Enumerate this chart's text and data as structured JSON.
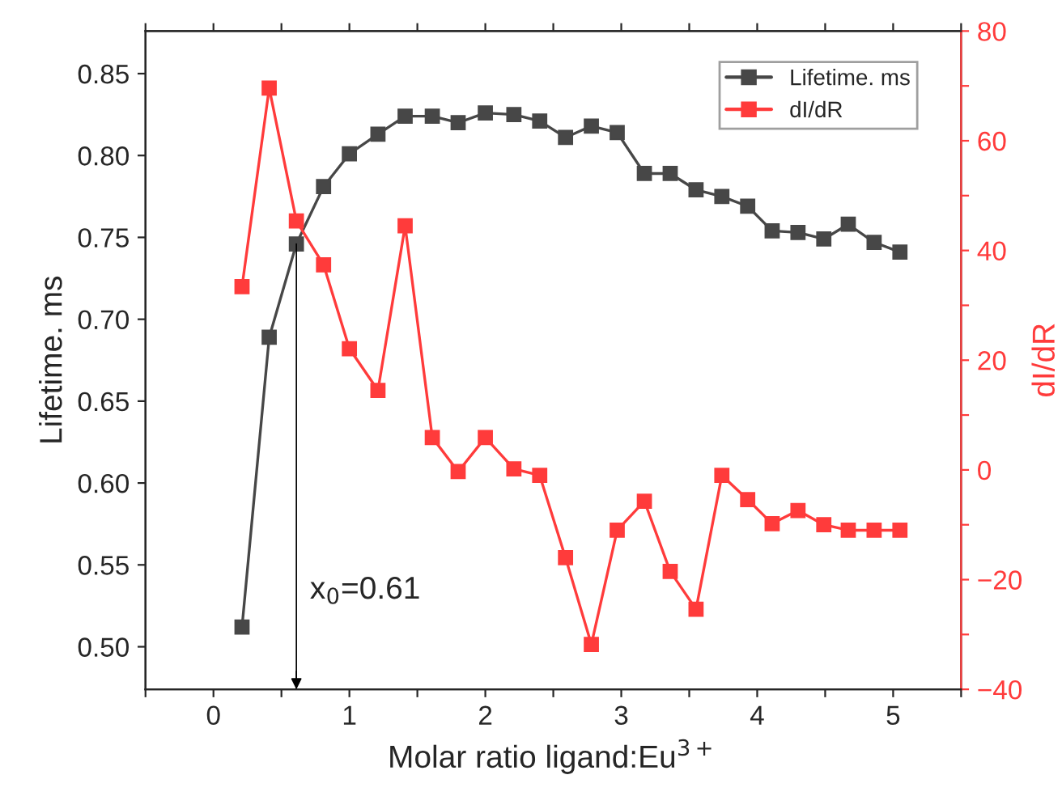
{
  "chart_data": {
    "type": "line",
    "xlabel": "Molar ratio ligand:Eu$^{3+}$",
    "ylabel": "Lifetime. ms",
    "y2label": "dI/dR",
    "x": [
      0.21,
      0.41,
      0.61,
      0.81,
      1.0,
      1.21,
      1.41,
      1.61,
      1.8,
      2.0,
      2.21,
      2.4,
      2.59,
      2.78,
      2.97,
      3.17,
      3.36,
      3.55,
      3.74,
      3.93,
      4.11,
      4.3,
      4.49,
      4.67,
      4.86,
      5.05
    ],
    "series": [
      {
        "name": "Lifetime. ms",
        "color": "#474747",
        "values": [
          0.512,
          0.689,
          0.746,
          0.781,
          0.801,
          0.813,
          0.824,
          0.824,
          0.82,
          0.826,
          0.825,
          0.821,
          0.811,
          0.818,
          0.814,
          0.789,
          0.789,
          0.779,
          0.775,
          0.769,
          0.754,
          0.753,
          0.749,
          0.758,
          0.747,
          0.741
        ]
      },
      {
        "name": "dI/dR",
        "color": "#ff3b3b",
        "axis": "y2",
        "values": [
          33.4,
          69.6,
          45.4,
          37.4,
          22.1,
          14.5,
          44.5,
          5.9,
          -0.3,
          5.9,
          0.2,
          -1.0,
          -16.0,
          -31.8,
          -11.0,
          -5.7,
          -18.5,
          -25.4,
          -1.0,
          -5.4,
          -9.8,
          -7.4,
          -10.0,
          -11.0,
          -11.0,
          -11.0
        ]
      }
    ],
    "xlim": [
      -0.5,
      5.5
    ],
    "xticks": [
      {
        "value": -0.5,
        "label": null
      },
      0,
      {
        "value": 0.5,
        "label": null
      },
      1,
      {
        "value": 1.5,
        "label": null
      },
      2,
      {
        "value": 2.5,
        "label": null
      },
      3,
      {
        "value": 3.5,
        "label": null
      },
      4,
      {
        "value": 4.5,
        "label": null
      },
      5,
      {
        "value": 5.5,
        "label": null
      }
    ],
    "ylim": [
      0.474,
      0.876
    ],
    "yticks": [
      {
        "value": 0.5,
        "label": "0.50"
      },
      {
        "value": 0.55,
        "label": "0.55"
      },
      {
        "value": 0.6,
        "label": "0.60"
      },
      {
        "value": 0.65,
        "label": "0.65"
      },
      {
        "value": 0.7,
        "label": "0.70"
      },
      {
        "value": 0.75,
        "label": "0.75"
      },
      {
        "value": 0.8,
        "label": "0.80"
      },
      {
        "value": 0.85,
        "label": "0.85"
      }
    ],
    "y2lim": [
      -40,
      80
    ],
    "y2ticks": [
      {
        "value": -40,
        "label": "−40"
      },
      {
        "value": -30,
        "label": null
      },
      {
        "value": -20,
        "label": "−20"
      },
      {
        "value": -10,
        "label": null
      },
      0,
      {
        "value": 10,
        "label": null
      },
      20,
      {
        "value": 30,
        "label": null
      },
      40,
      {
        "value": 50,
        "label": null
      },
      60,
      {
        "value": 70,
        "label": null
      },
      80
    ],
    "ref_lines": [
      {
        "axis": "x",
        "value": 0.61,
        "label": "x$_{0}$=0.61",
        "color": "#000000"
      }
    ],
    "legend": "top right",
    "grid": false,
    "marker": "square",
    "line_style": "solid"
  }
}
